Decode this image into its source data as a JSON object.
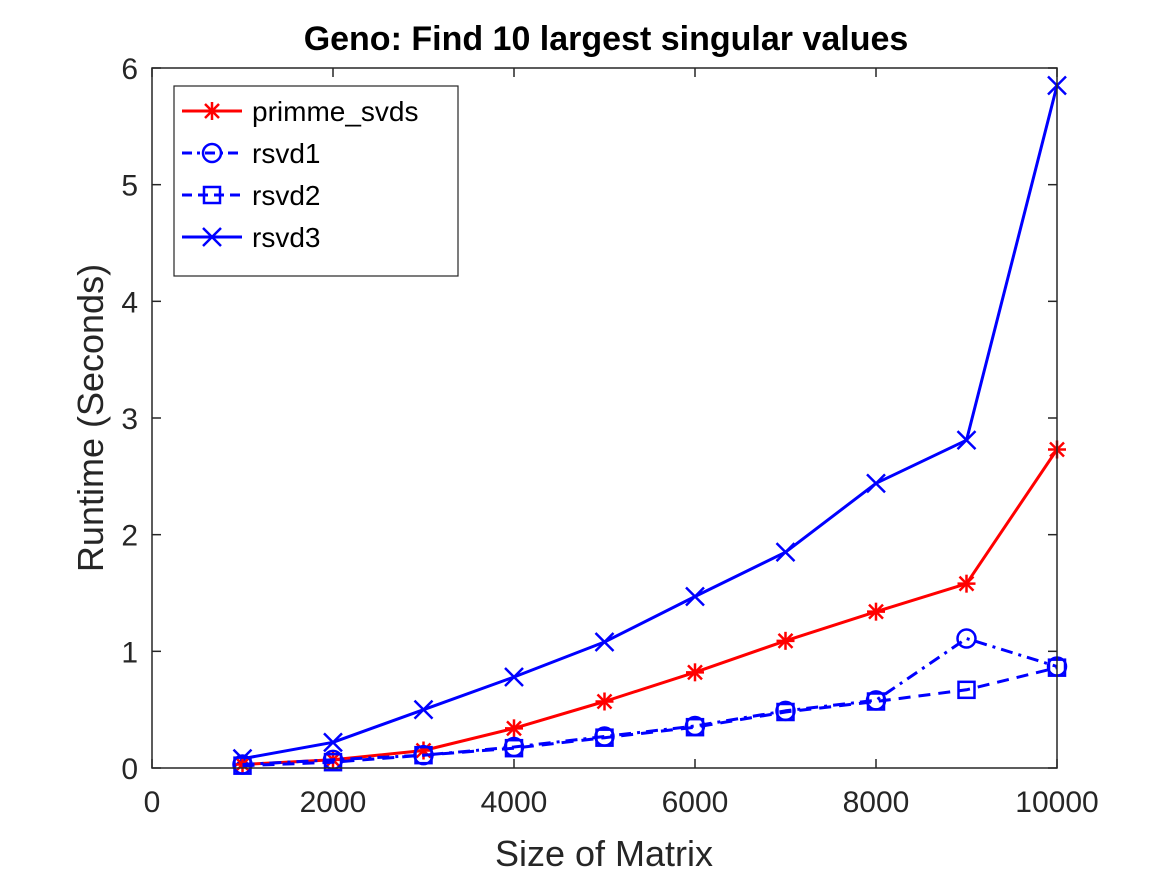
{
  "chart_data": {
    "type": "line",
    "title": "Geno: Find 10 largest singular values",
    "xlabel": "Size of Matrix",
    "ylabel": "Runtime (Seconds)",
    "xlim": [
      0,
      10000
    ],
    "ylim": [
      0,
      6
    ],
    "xticks": [
      "0",
      "2000",
      "4000",
      "6000",
      "8000",
      "10000"
    ],
    "yticks": [
      "0",
      "1",
      "2",
      "3",
      "4",
      "5",
      "6"
    ],
    "grid": false,
    "legend_position": "top-left",
    "x": [
      1000,
      2000,
      3000,
      4000,
      5000,
      6000,
      7000,
      8000,
      9000,
      10000
    ],
    "series": [
      {
        "name": "primme_svds",
        "color": "#ff0000",
        "marker": "asterisk",
        "dash": "solid",
        "values": [
          0.03,
          0.07,
          0.15,
          0.34,
          0.57,
          0.82,
          1.09,
          1.34,
          1.58,
          2.73
        ]
      },
      {
        "name": "rsvd1",
        "color": "#0000ff",
        "marker": "circle",
        "dash": "dashdot",
        "values": [
          0.03,
          0.07,
          0.11,
          0.18,
          0.27,
          0.36,
          0.49,
          0.58,
          1.11,
          0.87
        ]
      },
      {
        "name": "rsvd2",
        "color": "#0000ff",
        "marker": "square",
        "dash": "dashed",
        "values": [
          0.02,
          0.05,
          0.11,
          0.17,
          0.26,
          0.35,
          0.48,
          0.57,
          0.67,
          0.86
        ]
      },
      {
        "name": "rsvd3",
        "color": "#0000ff",
        "marker": "x",
        "dash": "solid",
        "values": [
          0.08,
          0.22,
          0.5,
          0.78,
          1.08,
          1.47,
          1.85,
          2.44,
          2.81,
          5.85
        ]
      }
    ]
  }
}
